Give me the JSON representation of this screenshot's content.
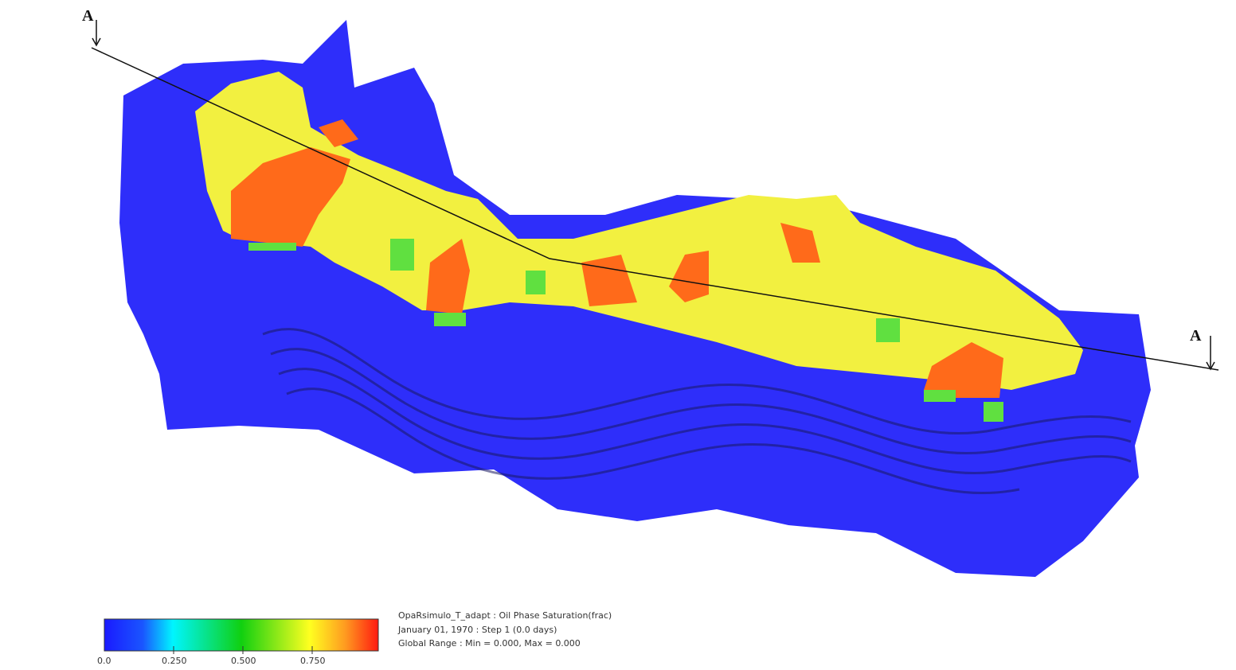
{
  "section_labels": [
    "A",
    "A"
  ],
  "legend": {
    "lines": [
      "OpaRsimulo_T_adapt : Oil Phase Saturation(frac)",
      "January 01, 1970 : Step 1 (0.0 days)",
      "Global Range : Min = 0.000, Max = 0.000"
    ],
    "tick_labels": [
      "0.0",
      "0.250",
      "0.500",
      "0.750"
    ]
  }
}
